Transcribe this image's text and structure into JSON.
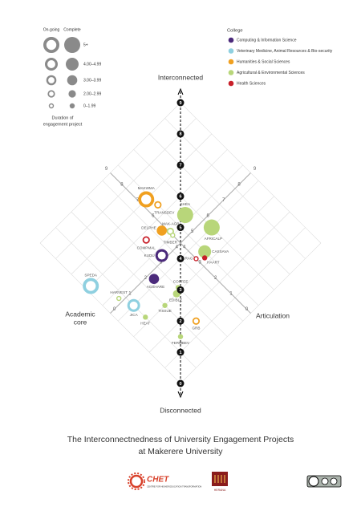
{
  "chart_data": {
    "type": "scatter",
    "title_lines": [
      "The Interconnectnedness of University Engagement Projects",
      "at Makerere University"
    ],
    "vertical_axis": {
      "top_label": "Interconnected",
      "bottom_label": "Disconnected",
      "ticks": [
        0,
        1,
        2,
        3,
        4,
        5,
        6,
        7,
        8,
        9
      ]
    },
    "core_axis": {
      "label_lines": [
        "Academic",
        "core"
      ],
      "ticks": [
        0,
        1,
        2,
        3,
        4,
        5,
        6,
        7,
        8,
        9
      ],
      "lim": [
        0,
        9
      ]
    },
    "articulation_axis": {
      "label": "Articulation",
      "ticks": [
        0,
        1,
        2,
        3,
        4,
        5,
        6,
        7,
        8,
        9
      ],
      "lim": [
        0,
        9
      ]
    },
    "grid": true,
    "status_legend": [
      "On-going",
      "Complete"
    ],
    "duration_legend": {
      "title_lines": [
        "Duration of",
        "engagement project"
      ],
      "bins": [
        "5+",
        "4.00–4.99",
        "3.00–3.99",
        "2.00–2.99",
        "0–1.99"
      ]
    },
    "college_legend": {
      "title": "College",
      "colleges": [
        {
          "name": "Computing & Information Science",
          "color": "#4b2a7b"
        },
        {
          "name": "Veterinary Medicine, Animal Resources & Bio-security",
          "color": "#8fd0e0"
        },
        {
          "name": "Humanities & Social Sciences",
          "color": "#f0a020"
        },
        {
          "name": "Agricultural & Environmental Sciences",
          "color": "#b8d67a"
        },
        {
          "name": "Health Sciences",
          "color": "#c8202a"
        }
      ]
    },
    "projects": [
      {
        "name": "MAKWMA",
        "college": "Humanities & Social Sciences",
        "status": "On-going",
        "duration": "5+",
        "core": 7.0,
        "articulation": 4.8
      },
      {
        "name": "TRANSDEV",
        "college": "Humanities & Social Sciences",
        "status": "On-going",
        "duration": "2.00–2.99",
        "core": 6.45,
        "articulation": 5.0
      },
      {
        "name": "SHEA",
        "college": "Agricultural & Environmental Sciences",
        "status": "Complete",
        "duration": "5+",
        "core": 5.25,
        "articulation": 5.55
      },
      {
        "name": "AFRICALP",
        "college": "Agricultural & Environmental Sciences",
        "status": "Complete",
        "duration": "5+",
        "core": 4.0,
        "articulation": 6.0
      },
      {
        "name": "MAK-AGRA",
        "college": "Agricultural & Environmental Sciences",
        "status": "On-going",
        "duration": "2.00–2.99",
        "core": 5.2,
        "articulation": 4.55
      },
      {
        "name": "DELPHE",
        "college": "Humanities & Social Sciences",
        "status": "Complete",
        "duration": "3.00–3.99",
        "core": 5.5,
        "articulation": 4.3
      },
      {
        "name": "TIMBER",
        "college": "Agricultural & Environmental Sciences",
        "status": "On-going",
        "duration": "0–1.99",
        "core": 5.0,
        "articulation": 4.5
      },
      {
        "name": "COMPMAL",
        "college": "Health Sciences",
        "status": "On-going",
        "duration": "2.00–2.99",
        "core": 5.7,
        "articulation": 3.5
      },
      {
        "name": "KUDU",
        "college": "Computing & Information Science",
        "status": "On-going",
        "duration": "4.00–4.99",
        "core": 4.7,
        "articulation": 3.5
      },
      {
        "name": "CASSAVA",
        "college": "Agricultural & Environmental Sciences",
        "status": "Complete",
        "duration": "4.00–4.99",
        "core": 3.45,
        "articulation": 5.0
      },
      {
        "name": "CRAG",
        "college": "Health Sciences",
        "status": "On-going",
        "duration": "0–1.99",
        "core": 3.5,
        "articulation": 4.5
      },
      {
        "name": "HAART",
        "college": "Health Sciences",
        "status": "Complete",
        "duration": "0–1.99",
        "core": 3.25,
        "articulation": 4.8
      },
      {
        "name": "AGSHARE",
        "college": "Computing & Information Science",
        "status": "Complete",
        "duration": "3.00–3.99",
        "core": 4.2,
        "articulation": 2.5
      },
      {
        "name": "COFFEE",
        "college": "Agricultural & Environmental Sciences",
        "status": "Complete",
        "duration": "0–1.99",
        "core": 3.15,
        "articulation": 3.0
      },
      {
        "name": "EDIBLE",
        "college": "Agricultural & Environmental Sciences",
        "status": "Complete",
        "duration": "2.00–2.99",
        "core": 3.0,
        "articulation": 2.75
      },
      {
        "name": "SPEDA",
        "college": "Veterinary Medicine, Animal Resources & Bio-security",
        "status": "On-going",
        "duration": "5+",
        "core": 6.0,
        "articulation": 0.25
      },
      {
        "name": "HARVEST",
        "college": "Agricultural & Environmental Sciences",
        "status": "On-going",
        "duration": "0–1.99",
        "core": 4.7,
        "articulation": 0.75
      },
      {
        "name": "JICA",
        "college": "Veterinary Medicine, Animal Resources & Bio-security",
        "status": "On-going",
        "duration": "4.00–4.99",
        "core": 4.0,
        "articulation": 1.0
      },
      {
        "name": "TISSUE",
        "college": "Agricultural & Environmental Sciences",
        "status": "Complete",
        "duration": "0–1.99",
        "core": 3.0,
        "articulation": 2.0
      },
      {
        "name": "HEAT",
        "college": "Agricultural & Environmental Sciences",
        "status": "Complete",
        "duration": "0–1.99",
        "core": 3.25,
        "articulation": 1.0
      },
      {
        "name": "GRB",
        "college": "Humanities & Social Sciences",
        "status": "On-going",
        "duration": "2.00–2.99",
        "core": 1.5,
        "articulation": 2.5
      },
      {
        "name": "FERMBEV",
        "college": "Agricultural & Environmental Sciences",
        "status": "Complete",
        "duration": "0–1.99",
        "core": 1.5,
        "articulation": 1.5
      }
    ],
    "footer": {
      "chet": "CHET",
      "chet_sub": "CENTRE FOR HIGHER EDUCATION TRANSFORMATION",
      "herana": "HERANA"
    }
  }
}
